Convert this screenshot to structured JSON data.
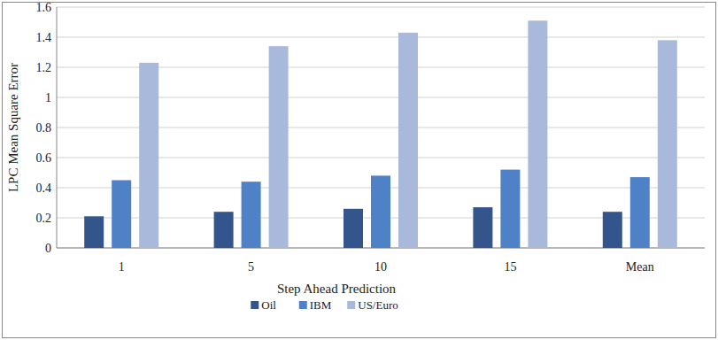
{
  "chart_data": {
    "type": "bar",
    "x_label": "Step Ahead Prediction",
    "y_label": "LPC Mean Square Error",
    "categories": [
      "1",
      "5",
      "10",
      "15",
      "Mean"
    ],
    "series": [
      {
        "name": "Oil",
        "color": "#34558b",
        "values": [
          0.21,
          0.24,
          0.26,
          0.27,
          0.24
        ]
      },
      {
        "name": "IBM",
        "color": "#4f81c7",
        "values": [
          0.45,
          0.44,
          0.48,
          0.52,
          0.47
        ]
      },
      {
        "name": "US/Euro",
        "color": "#a9b9dc",
        "values": [
          1.23,
          1.34,
          1.43,
          1.51,
          1.38
        ]
      }
    ],
    "ylim": [
      0,
      1.6
    ],
    "yticks": [
      0,
      0.2,
      0.4,
      0.6,
      0.8,
      1,
      1.2,
      1.4,
      1.6
    ],
    "grid": true,
    "legend": "bottom"
  }
}
